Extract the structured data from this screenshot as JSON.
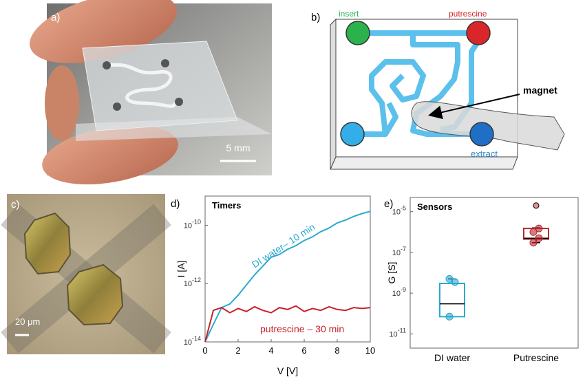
{
  "panels": {
    "a": {
      "label": "a)",
      "scale_bar": "5 mm"
    },
    "b": {
      "label": "b)",
      "inlet_1": "insert",
      "inlet_2": "putrescine",
      "outlet": "extract",
      "magnet": "magnet"
    },
    "c": {
      "label": "c)",
      "scale_bar": "20 μm"
    }
  },
  "chart_data": [
    {
      "type": "line",
      "panel_label": "d)",
      "title": "Timers",
      "x_label": "V [V]",
      "y_label": "I [A]",
      "log_y": true,
      "xlim": [
        0,
        10
      ],
      "xticks": [
        0,
        2,
        4,
        6,
        8,
        10
      ],
      "ylim": [
        1e-14,
        1e-09
      ],
      "yticks": [
        {
          "value": 1e-14,
          "label": "10-14"
        },
        {
          "value": 1e-12,
          "label": "10-12"
        },
        {
          "value": 1e-10,
          "label": "10-10"
        }
      ],
      "x": [
        0,
        0.5,
        1,
        1.5,
        2,
        2.5,
        3,
        3.5,
        4,
        4.5,
        5,
        5.5,
        6,
        6.5,
        7,
        7.5,
        8,
        8.5,
        9,
        9.5,
        10
      ],
      "series": [
        {
          "name": "DI water– 10 min",
          "color": "#29a9cf",
          "values": [
            1e-14,
            4e-14,
            1.5e-13,
            2e-13,
            4e-13,
            9e-13,
            2e-12,
            4e-12,
            8e-12,
            1e-11,
            1.5e-11,
            2e-11,
            3e-11,
            4e-11,
            6e-11,
            8e-11,
            1.2e-10,
            1.5e-10,
            2e-10,
            2.5e-10,
            3e-10
          ]
        },
        {
          "name": "putrescine – 30 min",
          "color": "#c8202a",
          "values": [
            1e-14,
            1.2e-13,
            1.5e-13,
            1e-13,
            1.4e-13,
            1.1e-13,
            1.6e-13,
            1.2e-13,
            1e-13,
            1.5e-13,
            1.3e-13,
            1.7e-13,
            1.1e-13,
            1.4e-13,
            1.2e-13,
            1.6e-13,
            1.3e-13,
            1.2e-13,
            1.5e-13,
            1.4e-13,
            1.5e-13
          ]
        }
      ]
    },
    {
      "type": "box",
      "panel_label": "e)",
      "title": "Sensors",
      "y_label": "G [S]",
      "log_y": true,
      "ylim": [
        2e-12,
        5e-05
      ],
      "yticks": [
        {
          "value": 1e-11,
          "label": "10-11"
        },
        {
          "value": 1e-09,
          "label": "10-9"
        },
        {
          "value": 1e-07,
          "label": "10-7"
        },
        {
          "value": 1e-05,
          "label": "10-5"
        }
      ],
      "categories": [
        "DI water",
        "Putrescine"
      ],
      "boxes": [
        {
          "color": "#29a9cf",
          "whisker_low": 7e-11,
          "q1": 7e-11,
          "median": 3e-10,
          "q3": 3e-09,
          "whisker_high": 5e-09,
          "points": [
            7e-11,
            3.5e-09,
            5e-09
          ],
          "outliers": []
        },
        {
          "color": "#b8262e",
          "whisker_low": 3e-07,
          "q1": 4.5e-07,
          "median": 5e-07,
          "q3": 1.5e-06,
          "whisker_high": 1.6e-06,
          "points": [
            3e-07,
            5e-07,
            1e-06,
            1.5e-06
          ],
          "outliers": [
            2e-05
          ]
        }
      ]
    }
  ]
}
